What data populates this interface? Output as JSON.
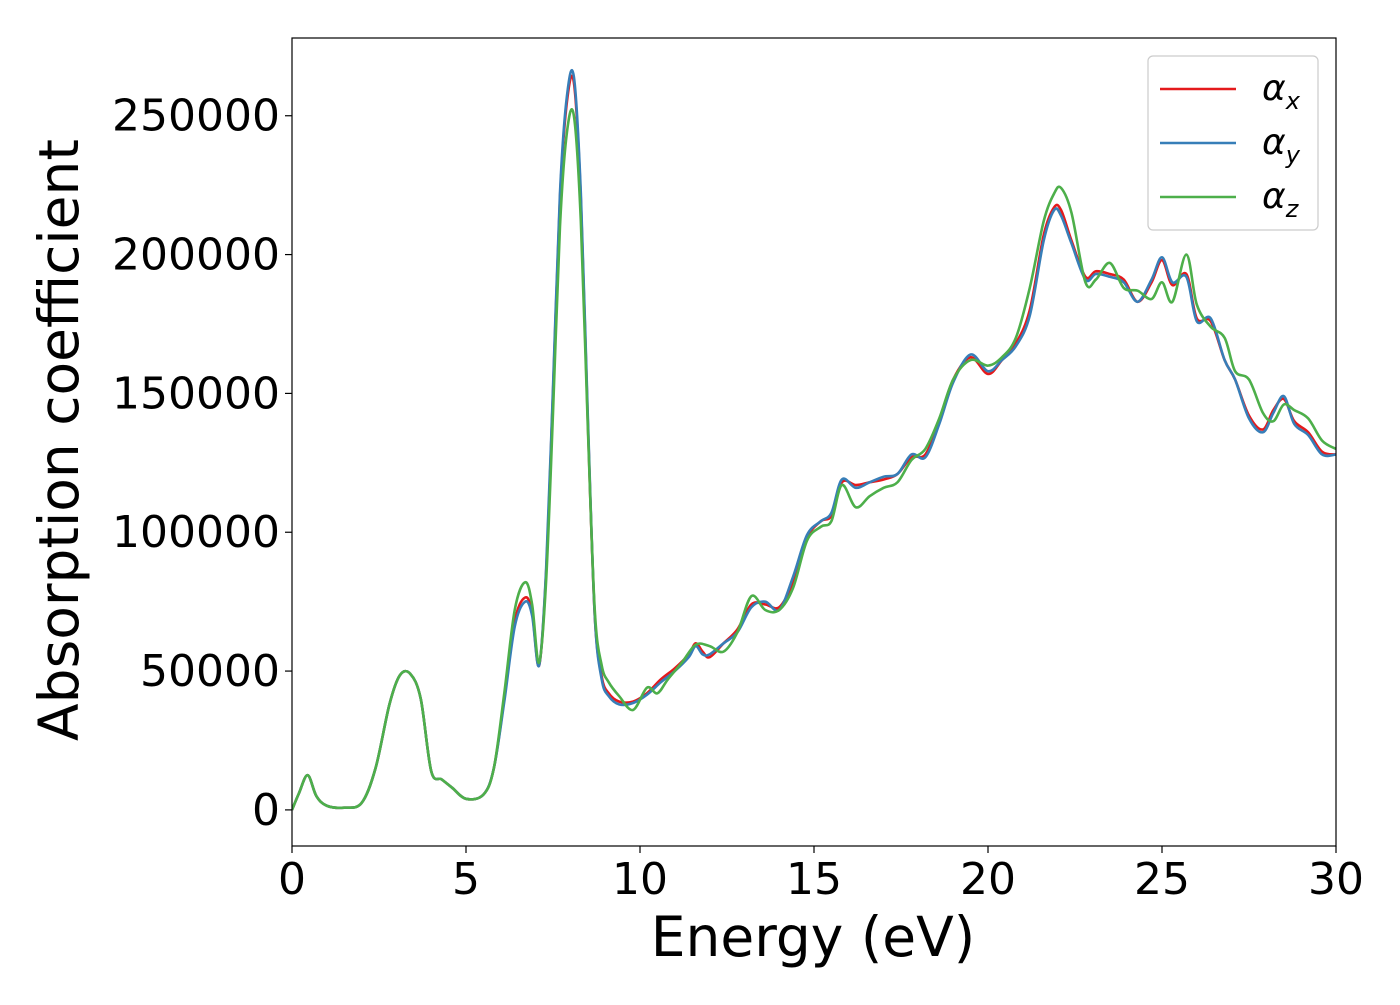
{
  "chart_data": {
    "type": "line",
    "xlabel": "Energy (eV)",
    "ylabel": "Absorption coefficient",
    "xlim": [
      0,
      30
    ],
    "ylim": [
      -13000,
      278000
    ],
    "xticks": [
      0,
      5,
      10,
      15,
      20,
      25,
      30
    ],
    "yticks": [
      0,
      50000,
      100000,
      150000,
      200000,
      250000
    ],
    "grid": false,
    "legend_position": "top-right",
    "series": [
      {
        "name": "α",
        "subscript": "x",
        "color": "#e41a1c",
        "x": [
          0,
          0.2,
          0.45,
          0.7,
          1.0,
          1.5,
          2.0,
          2.4,
          2.8,
          3.1,
          3.4,
          3.7,
          4.0,
          4.3,
          4.6,
          5.0,
          5.5,
          5.8,
          6.1,
          6.4,
          6.7,
          6.9,
          7.1,
          7.3,
          7.5,
          7.7,
          7.9,
          8.1,
          8.3,
          8.5,
          8.7,
          8.9,
          9.1,
          9.4,
          9.8,
          10.2,
          10.6,
          11.0,
          11.4,
          11.6,
          11.8,
          12.0,
          12.4,
          12.8,
          13.2,
          13.6,
          14.0,
          14.4,
          14.8,
          15.2,
          15.5,
          15.8,
          16.2,
          16.6,
          17.0,
          17.4,
          17.8,
          18.2,
          18.6,
          19.0,
          19.5,
          20.0,
          20.4,
          20.8,
          21.2,
          21.6,
          21.9,
          22.1,
          22.4,
          22.8,
          23.1,
          23.5,
          23.9,
          24.3,
          24.7,
          25.0,
          25.3,
          25.7,
          26.0,
          26.4,
          26.8,
          27.1,
          27.5,
          27.9,
          28.2,
          28.5,
          28.8,
          29.2,
          29.6,
          30.0
        ],
        "y": [
          0,
          6000,
          12500,
          5000,
          1500,
          800,
          2500,
          15000,
          38000,
          48500,
          49000,
          40000,
          14000,
          11000,
          8000,
          4000,
          5500,
          15000,
          40000,
          68000,
          76500,
          71000,
          52000,
          85000,
          150000,
          220000,
          255000,
          262000,
          220000,
          140000,
          70000,
          48000,
          42000,
          39000,
          39000,
          42000,
          47000,
          51000,
          56000,
          60000,
          57000,
          55000,
          60000,
          65000,
          74000,
          74000,
          73000,
          82000,
          98000,
          104000,
          106000,
          118000,
          117000,
          118000,
          119000,
          121000,
          127000,
          128000,
          140000,
          155000,
          163000,
          157000,
          162000,
          168000,
          180000,
          207000,
          217000,
          216000,
          205000,
          192000,
          194000,
          193000,
          191000,
          183000,
          190000,
          198000,
          189000,
          193000,
          177000,
          176000,
          162000,
          155000,
          142000,
          137000,
          144000,
          148000,
          140000,
          136000,
          129000,
          128000
        ]
      },
      {
        "name": "α",
        "subscript": "y",
        "color": "#377eb8",
        "x": [
          0,
          0.2,
          0.45,
          0.7,
          1.0,
          1.5,
          2.0,
          2.4,
          2.8,
          3.1,
          3.4,
          3.7,
          4.0,
          4.3,
          4.6,
          5.0,
          5.5,
          5.8,
          6.1,
          6.4,
          6.7,
          6.9,
          7.1,
          7.3,
          7.5,
          7.7,
          7.9,
          8.1,
          8.3,
          8.5,
          8.7,
          8.9,
          9.1,
          9.4,
          9.8,
          10.2,
          10.6,
          11.0,
          11.4,
          11.6,
          11.8,
          12.0,
          12.4,
          12.8,
          13.2,
          13.6,
          14.0,
          14.4,
          14.8,
          15.2,
          15.5,
          15.8,
          16.2,
          16.6,
          17.0,
          17.4,
          17.8,
          18.2,
          18.6,
          19.0,
          19.5,
          20.0,
          20.4,
          20.8,
          21.2,
          21.6,
          21.9,
          22.1,
          22.4,
          22.8,
          23.1,
          23.5,
          23.9,
          24.3,
          24.7,
          25.0,
          25.3,
          25.7,
          26.0,
          26.4,
          26.8,
          27.1,
          27.5,
          27.9,
          28.2,
          28.5,
          28.8,
          29.2,
          29.6,
          30.0
        ],
        "y": [
          0,
          6000,
          12500,
          5000,
          1500,
          800,
          2500,
          15000,
          38000,
          48500,
          49000,
          40000,
          14000,
          11000,
          8000,
          4000,
          5500,
          15000,
          39000,
          66000,
          75000,
          70000,
          52000,
          86000,
          152000,
          222000,
          257000,
          264000,
          222000,
          142000,
          70000,
          47000,
          41000,
          38000,
          38500,
          41500,
          46000,
          50000,
          55000,
          59000,
          56000,
          56000,
          60000,
          64000,
          73000,
          75000,
          72000,
          84000,
          99000,
          104000,
          107000,
          119000,
          116000,
          118000,
          120000,
          121000,
          128000,
          127000,
          139000,
          154000,
          164000,
          158000,
          162000,
          167000,
          178000,
          205000,
          216000,
          214000,
          204000,
          191000,
          193000,
          192000,
          190000,
          183000,
          191000,
          199000,
          190000,
          192000,
          176000,
          177000,
          162000,
          155000,
          141000,
          136000,
          143000,
          149000,
          139000,
          135000,
          128000,
          128000
        ]
      },
      {
        "name": "α",
        "subscript": "z",
        "color": "#4daf4a",
        "x": [
          0,
          0.2,
          0.45,
          0.7,
          1.0,
          1.5,
          2.0,
          2.4,
          2.8,
          3.1,
          3.4,
          3.7,
          4.0,
          4.3,
          4.6,
          5.0,
          5.5,
          5.8,
          6.1,
          6.4,
          6.7,
          6.9,
          7.1,
          7.3,
          7.5,
          7.7,
          7.9,
          8.1,
          8.3,
          8.5,
          8.7,
          8.9,
          9.1,
          9.4,
          9.8,
          10.2,
          10.5,
          10.8,
          11.2,
          11.6,
          12.0,
          12.4,
          12.8,
          13.2,
          13.6,
          14.0,
          14.4,
          14.8,
          15.2,
          15.5,
          15.8,
          16.2,
          16.6,
          17.0,
          17.4,
          17.8,
          18.2,
          18.6,
          19.0,
          19.5,
          20.0,
          20.4,
          20.8,
          21.2,
          21.6,
          21.9,
          22.1,
          22.4,
          22.8,
          23.1,
          23.5,
          23.9,
          24.3,
          24.7,
          25.0,
          25.3,
          25.7,
          26.0,
          26.4,
          26.8,
          27.1,
          27.5,
          27.9,
          28.2,
          28.5,
          28.8,
          29.2,
          29.6,
          30.0
        ],
        "y": [
          0,
          6000,
          12500,
          5000,
          1500,
          800,
          2500,
          15000,
          38000,
          48500,
          49000,
          40000,
          14000,
          11000,
          8000,
          4000,
          5500,
          15000,
          42000,
          72000,
          82000,
          74000,
          53000,
          82000,
          143000,
          210000,
          244000,
          250000,
          212000,
          138000,
          72000,
          52000,
          46000,
          41000,
          36000,
          44000,
          42000,
          47000,
          53000,
          59500,
          59000,
          57000,
          64000,
          77000,
          72000,
          72000,
          80000,
          97000,
          102000,
          104000,
          117000,
          109000,
          113000,
          116000,
          118000,
          126000,
          130000,
          141000,
          155000,
          162000,
          160000,
          163000,
          170000,
          188000,
          212000,
          222000,
          224000,
          215000,
          190000,
          191000,
          197000,
          188000,
          187000,
          184000,
          190000,
          183000,
          200000,
          182000,
          174000,
          170000,
          158000,
          155000,
          143000,
          140000,
          146000,
          144000,
          141000,
          133000,
          130000
        ]
      }
    ]
  }
}
